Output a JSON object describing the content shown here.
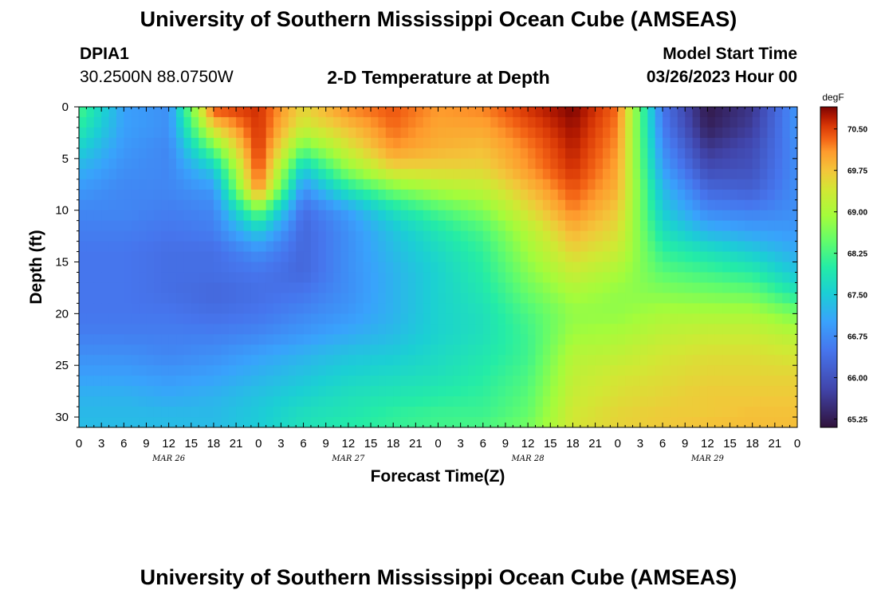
{
  "header": {
    "title": "University of Southern Mississippi Ocean Cube (AMSEAS)",
    "station": "DPIA1",
    "coords": "30.2500N  88.0750W",
    "subtitle": "2-D Temperature at Depth",
    "model_start_label": "Model Start Time",
    "model_start_value": "03/26/2023 Hour 00"
  },
  "footer": {
    "title": "University of Southern Mississippi Ocean Cube (AMSEAS)"
  },
  "chart_data": {
    "type": "heatmap",
    "title": "2-D Temperature at Depth",
    "xlabel": "Forecast Time(Z)",
    "ylabel": "Depth (ft)",
    "x_range_hours": [
      0,
      96
    ],
    "y_range_ft": [
      0,
      31
    ],
    "x_tick_labels": [
      "0",
      "3",
      "6",
      "9",
      "12",
      "15",
      "18",
      "21",
      "0",
      "3",
      "6",
      "9",
      "12",
      "15",
      "18",
      "21",
      "0",
      "3",
      "6",
      "9",
      "12",
      "15",
      "18",
      "21",
      "0",
      "3",
      "6",
      "9",
      "12",
      "15",
      "18",
      "21",
      "0"
    ],
    "date_labels": [
      {
        "label": "MAR 26",
        "hour": 12
      },
      {
        "label": "MAR 27",
        "hour": 36
      },
      {
        "label": "MAR 28",
        "hour": 60
      },
      {
        "label": "MAR 29",
        "hour": 84
      }
    ],
    "y_ticks": [
      0,
      5,
      10,
      15,
      20,
      25,
      30
    ],
    "colorbar": {
      "unit": "degF",
      "min": 65.1,
      "max": 70.9,
      "tick_labels": [
        "70.50",
        "69.75",
        "69.00",
        "68.25",
        "67.50",
        "66.75",
        "66.00",
        "65.25"
      ]
    },
    "depth_levels_ft": [
      0,
      2,
      4,
      6,
      8,
      10,
      12,
      14,
      16,
      18,
      20,
      22,
      24,
      26,
      28,
      30,
      31
    ],
    "time_hours": [
      0,
      6,
      12,
      18,
      24,
      30,
      36,
      42,
      48,
      54,
      60,
      66,
      72,
      78,
      84,
      90,
      96
    ],
    "values_degF": [
      [
        68.3,
        67.0,
        66.8,
        70.5,
        70.6,
        69.6,
        70.2,
        70.4,
        70.1,
        70.2,
        70.6,
        70.9,
        70.3,
        66.5,
        65.2,
        65.6,
        66.9
      ],
      [
        68.0,
        67.0,
        66.8,
        69.6,
        70.6,
        69.3,
        69.8,
        70.3,
        70.0,
        70.0,
        70.4,
        70.8,
        70.2,
        66.6,
        65.3,
        65.7,
        66.9
      ],
      [
        67.6,
        66.9,
        66.7,
        68.5,
        70.6,
        68.5,
        69.4,
        70.1,
        69.9,
        69.8,
        70.2,
        70.7,
        70.1,
        66.8,
        65.6,
        65.9,
        66.8
      ],
      [
        67.2,
        66.8,
        66.7,
        67.5,
        70.5,
        67.5,
        68.8,
        69.6,
        69.6,
        69.6,
        70.1,
        70.6,
        70.0,
        67.0,
        65.9,
        66.0,
        66.8
      ],
      [
        66.9,
        66.7,
        66.7,
        66.9,
        70.2,
        66.8,
        67.9,
        68.6,
        69.0,
        69.2,
        69.8,
        70.4,
        69.9,
        67.3,
        66.3,
        66.2,
        66.8
      ],
      [
        66.7,
        66.7,
        66.6,
        66.7,
        68.6,
        66.4,
        67.0,
        67.8,
        68.3,
        68.7,
        69.5,
        70.2,
        69.7,
        67.5,
        66.7,
        66.6,
        66.8
      ],
      [
        66.6,
        66.6,
        66.5,
        66.6,
        67.5,
        66.3,
        66.8,
        67.4,
        67.9,
        68.3,
        69.1,
        69.9,
        69.5,
        67.8,
        67.2,
        67.0,
        66.9
      ],
      [
        66.5,
        66.5,
        66.4,
        66.4,
        66.8,
        66.3,
        66.8,
        67.3,
        67.7,
        68.1,
        68.9,
        69.6,
        69.3,
        68.1,
        67.8,
        67.5,
        67.1
      ],
      [
        66.5,
        66.5,
        66.4,
        66.4,
        66.5,
        66.3,
        66.8,
        67.2,
        67.6,
        68.0,
        68.7,
        69.3,
        69.0,
        68.4,
        68.2,
        68.0,
        67.4
      ],
      [
        66.5,
        66.5,
        66.4,
        66.3,
        66.4,
        66.5,
        66.8,
        67.2,
        67.6,
        67.9,
        68.5,
        69.0,
        68.8,
        68.7,
        68.6,
        68.5,
        67.9
      ],
      [
        66.5,
        66.5,
        66.5,
        66.4,
        66.5,
        66.7,
        66.9,
        67.2,
        67.6,
        67.8,
        68.3,
        68.8,
        68.8,
        69.0,
        69.0,
        69.0,
        68.6
      ],
      [
        66.6,
        66.6,
        66.6,
        66.6,
        66.7,
        66.9,
        67.1,
        67.3,
        67.6,
        67.8,
        68.2,
        68.9,
        69.0,
        69.2,
        69.3,
        69.3,
        69.1
      ],
      [
        66.8,
        66.8,
        66.7,
        66.8,
        67.0,
        67.2,
        67.4,
        67.5,
        67.7,
        67.9,
        68.2,
        69.1,
        69.2,
        69.4,
        69.5,
        69.5,
        69.4
      ],
      [
        67.0,
        67.0,
        66.9,
        67.0,
        67.2,
        67.4,
        67.6,
        67.7,
        67.8,
        68.0,
        68.3,
        69.2,
        69.4,
        69.5,
        69.6,
        69.6,
        69.6
      ],
      [
        67.2,
        67.2,
        67.1,
        67.2,
        67.4,
        67.6,
        67.8,
        67.9,
        68.0,
        68.1,
        68.4,
        69.3,
        69.5,
        69.6,
        69.7,
        69.7,
        69.7
      ],
      [
        67.3,
        67.3,
        67.3,
        67.3,
        67.5,
        67.8,
        67.9,
        68.1,
        68.2,
        68.2,
        68.5,
        69.4,
        69.6,
        69.7,
        69.7,
        69.8,
        69.8
      ],
      [
        67.3,
        67.3,
        67.3,
        67.3,
        67.5,
        67.8,
        68.0,
        68.1,
        68.2,
        68.3,
        68.6,
        69.4,
        69.6,
        69.7,
        69.8,
        69.8,
        69.8
      ]
    ]
  }
}
